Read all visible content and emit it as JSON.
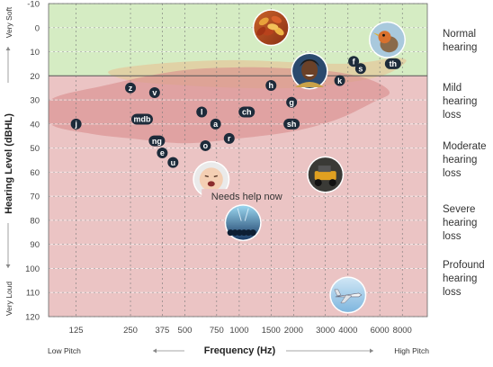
{
  "chart_data": {
    "type": "scatter",
    "title": "",
    "xlabel": "Frequency (Hz)",
    "ylabel": "Hearing Level (dBHL)",
    "x_ticks": [
      "125",
      "250",
      "375",
      "500",
      "750",
      "1000",
      "1500",
      "2000",
      "3000",
      "4000",
      "6000",
      "8000"
    ],
    "x_tick_values": [
      125,
      250,
      375,
      500,
      750,
      1000,
      1500,
      2000,
      3000,
      4000,
      6000,
      8000
    ],
    "x_scale": "log",
    "xlim": [
      88,
      11000
    ],
    "ylim": [
      -10,
      120
    ],
    "y_ticks": [
      -10,
      0,
      10,
      20,
      30,
      40,
      50,
      60,
      70,
      80,
      90,
      100,
      110,
      120
    ],
    "y_inverted": true,
    "grid": true,
    "x_end_labels": {
      "left": "Low Pitch",
      "right": "High Pitch"
    },
    "y_end_labels": {
      "top": "Very Soft",
      "bottom": "Very Loud"
    },
    "bands": [
      {
        "label": "Normal hearing",
        "from": -10,
        "to": 20,
        "color": "#d5ecc3"
      },
      {
        "label": "Mild hearing loss",
        "from": 20,
        "to": 40,
        "color": "#ebc4c4"
      },
      {
        "label": "Moderate hearing loss",
        "from": 40,
        "to": 70,
        "color": "#ebc4c4"
      },
      {
        "label": "Severe hearing loss",
        "from": 70,
        "to": 90,
        "color": "#ebc4c4"
      },
      {
        "label": "Profound hearing loss",
        "from": 90,
        "to": 120,
        "color": "#ebc4c4"
      }
    ],
    "speech_sounds": [
      {
        "label": "j",
        "x": 125,
        "y": 40
      },
      {
        "label": "z",
        "x": 250,
        "y": 25
      },
      {
        "label": "v",
        "x": 340,
        "y": 27
      },
      {
        "label": "mdb",
        "x": 290,
        "y": 38
      },
      {
        "label": "ng",
        "x": 350,
        "y": 47
      },
      {
        "label": "e",
        "x": 375,
        "y": 52
      },
      {
        "label": "u",
        "x": 430,
        "y": 56
      },
      {
        "label": "l",
        "x": 620,
        "y": 35
      },
      {
        "label": "a",
        "x": 740,
        "y": 40
      },
      {
        "label": "o",
        "x": 650,
        "y": 49
      },
      {
        "label": "r",
        "x": 880,
        "y": 46
      },
      {
        "label": "ch",
        "x": 1100,
        "y": 35
      },
      {
        "label": "h",
        "x": 1500,
        "y": 24
      },
      {
        "label": "g",
        "x": 1950,
        "y": 31
      },
      {
        "label": "sh",
        "x": 1950,
        "y": 40
      },
      {
        "label": "k",
        "x": 3600,
        "y": 22
      },
      {
        "label": "f",
        "x": 4300,
        "y": 14
      },
      {
        "label": "s",
        "x": 4700,
        "y": 17
      },
      {
        "label": "th",
        "x": 7100,
        "y": 15
      }
    ],
    "pictures": [
      {
        "name": "rustling-leaves",
        "x": 1500,
        "y": 0
      },
      {
        "name": "bird-chirping",
        "x": 6600,
        "y": 5
      },
      {
        "name": "person-talking",
        "x": 2450,
        "y": 18
      },
      {
        "name": "baby-crying",
        "x": 700,
        "y": 63
      },
      {
        "name": "lawn-mower",
        "x": 3000,
        "y": 61
      },
      {
        "name": "concert-crowd",
        "x": 1050,
        "y": 81
      },
      {
        "name": "airplane",
        "x": 4000,
        "y": 111
      }
    ],
    "annotation": {
      "text": "Needs help now",
      "x": 1100,
      "y": 70
    },
    "speech_banana_color": "#d88c8c",
    "point_color": "#1d2b3a"
  }
}
